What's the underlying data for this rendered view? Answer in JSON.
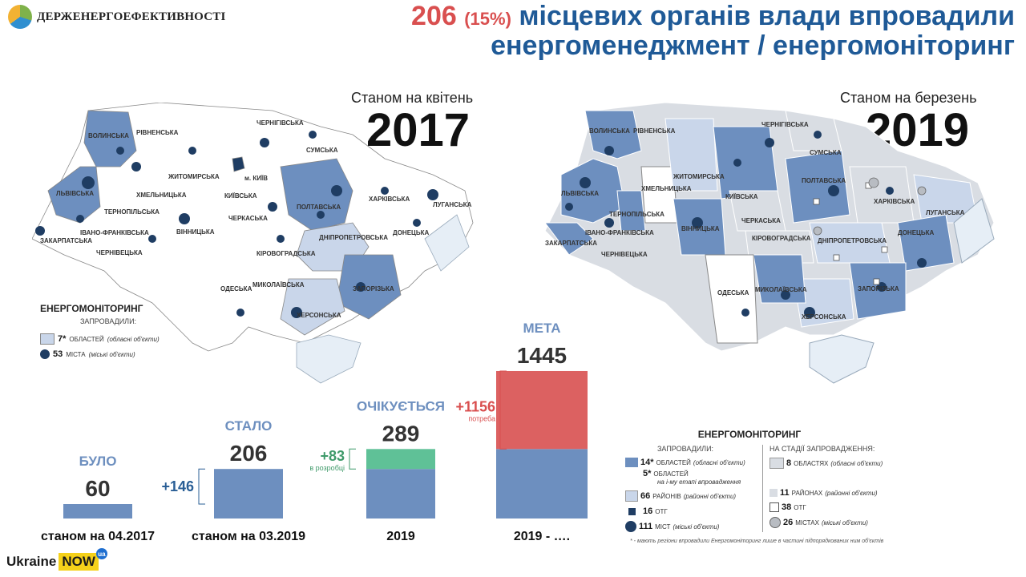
{
  "logo": {
    "text": "ДЕРЖЕНЕРГОЕФЕКТИВНОСТІ"
  },
  "title": {
    "number": "206",
    "percent": "(15%)",
    "line1_rest": "місцевих органів влади впровадили",
    "line2": "енергоменеджмент / енергомоніторинг"
  },
  "map2017": {
    "as_of": "Станом на квітень",
    "year": "2017",
    "regions": {
      "volynska": "ВОЛИНСЬКА",
      "rivnenska": "РІВНЕНСЬКА",
      "chernihivska": "ЧЕРНІГІВСЬКА",
      "sumska": "СУМСЬКА",
      "lvivska": "ЛЬВІВСЬКА",
      "zhytomyrska": "ЖИТОМИРСЬКА",
      "kyiv": "м. КИЇВ",
      "kyivska": "КИЇВСЬКА",
      "poltavska": "ПОЛТАВСЬКА",
      "kharkivska": "ХАРКІВСЬКА",
      "luhanska": "ЛУГАНСЬКА",
      "khmelnytska": "ХМЕЛЬНИЦЬКА",
      "ternopilska": "ТЕРНОПІЛЬСЬКА",
      "cherkaska": "ЧЕРКАСЬКА",
      "vinnytska": "ВІННИЦЬКА",
      "ivano": "ІВАНО-ФРАНКІВСЬКА",
      "zakarpatska": "ЗАКАРПАТСЬКА",
      "chernivetska": "ЧЕРНІВЕЦЬКА",
      "dnipro": "ДНІПРОПЕТРОВСЬКА",
      "donetska": "ДОНЕЦЬКА",
      "kirovohradska": "КІРОВОГРАДСЬКА",
      "zaporizka": "ЗАПОРІЗЬКА",
      "odeska": "ОДЕСЬКА",
      "mykolaivska": "МИКОЛАЇВСЬКА",
      "khersonska": "ХЕРСОНСЬКА"
    },
    "legend": {
      "title": "ЕНЕРГОМОНІТОРИНГ",
      "subtitle": "ЗАПРОВАДИЛИ:",
      "regions_count": "7*",
      "regions_label": "ОБЛАСТЕЙ",
      "regions_note": "(обласні об'єкти)",
      "cities_count": "53",
      "cities_label": "МІСТА",
      "cities_note": "(міські об'єкти)"
    }
  },
  "map2019": {
    "as_of": "Станом на березень",
    "year": "2019",
    "regions": {
      "volynska": "ВОЛИНСЬКА",
      "rivnenska": "РІВНЕНСЬКА",
      "chernihivska": "ЧЕРНІГІВСЬКА",
      "sumska": "СУМСЬКА",
      "lvivska": "ЛЬВІВСЬКА",
      "zhytomyrska": "ЖИТОМИРСЬКА",
      "kyivska": "КИЇВСЬКА",
      "poltavska": "ПОЛТАВСЬКА",
      "kharkivska": "ХАРКІВСЬКА",
      "luhanska": "ЛУГАНСЬКА",
      "khmelnytska": "ХМЕЛЬНИЦЬКА",
      "ternopilska": "ТЕРНОПІЛЬСЬКА",
      "cherkaska": "ЧЕРКАСЬКА",
      "vinnytska": "ВІННИЦЬКА",
      "ivano": "ІВАНО-ФРАНКІВСЬКА",
      "zakarpatska": "ЗАКАРПАТСЬКА",
      "chernivetska": "ЧЕРНІВЕЦЬКА",
      "dnipro": "ДНІПРОПЕТРОВСЬКА",
      "donetska": "ДОНЕЦЬКА",
      "kirovohradska": "КІРОВОГРАДСЬКА",
      "zaporizka": "ЗАПОРІЗЬКА",
      "odeska": "ОДЕСЬКА",
      "mykolaivska": "МИКОЛАЇВСЬКА",
      "khersonska": "ХЕРСОНСЬКА"
    },
    "legend": {
      "title": "ЕНЕРГОМОНІТОРИНГ",
      "implemented": "ЗАПРОВАДИЛИ:",
      "in_progress": "НА СТАДІЇ ЗАПРОВАДЖЕННЯ:",
      "a_count": "14*",
      "a_label": "ОБЛАСТЕЙ",
      "a_note": "(обласні об'єкти)",
      "b_count": "5*",
      "b_label": "ОБЛАСТЕЙ",
      "b_note": "на і-му етапі впровадження",
      "c_count": "66",
      "c_label": "РАЙОНІВ",
      "c_note": "(районні об'єкти)",
      "d_count": "16",
      "d_label": "ОТГ",
      "e_count": "111",
      "e_label": "МІСТ",
      "e_note": "(міські об'єкти)",
      "f_count": "8",
      "f_label": "ОБЛАСТЯХ",
      "f_note": "(обласні об'єкти)",
      "g_count": "11",
      "g_label": "РАЙОНАХ",
      "g_note": "(районні об'єкти)",
      "h_count": "38",
      "h_label": "ОТГ",
      "i_count": "26",
      "i_label": "МІСТАХ",
      "i_note": "(міські об'єкти)",
      "footnote": "* - мають регіони впровадили Енергомоніторинг лише в частині підпорядкованих ним об'єктів"
    }
  },
  "chart_data": {
    "type": "bar",
    "categories": [
      "станом на 04.2017",
      "станом на 03.2019",
      "2019",
      "2019 - …."
    ],
    "labels": [
      "БУЛО",
      "СТАЛО",
      "ОЧІКУЄТЬСЯ",
      "МЕТА"
    ],
    "totals": [
      60,
      206,
      289,
      1445
    ],
    "series": [
      {
        "values": [
          60,
          206,
          206,
          289
        ],
        "color": "#6d8fbf"
      },
      {
        "values": [
          0,
          0,
          83,
          0
        ],
        "color": "#5fc197"
      },
      {
        "values": [
          0,
          0,
          0,
          1156
        ],
        "color": "#dc6161"
      }
    ],
    "deltas": [
      {
        "text": "+146",
        "note": "",
        "color": "#2a5f96"
      },
      {
        "text": "+83",
        "note": "в розробці",
        "color": "#3f9a6a"
      },
      {
        "text": "+1156",
        "note": "потреба",
        "color": "#d94f4f"
      }
    ]
  },
  "branding": {
    "ukraine": "Ukraine",
    "now": "NOW",
    "ua": "ua"
  }
}
